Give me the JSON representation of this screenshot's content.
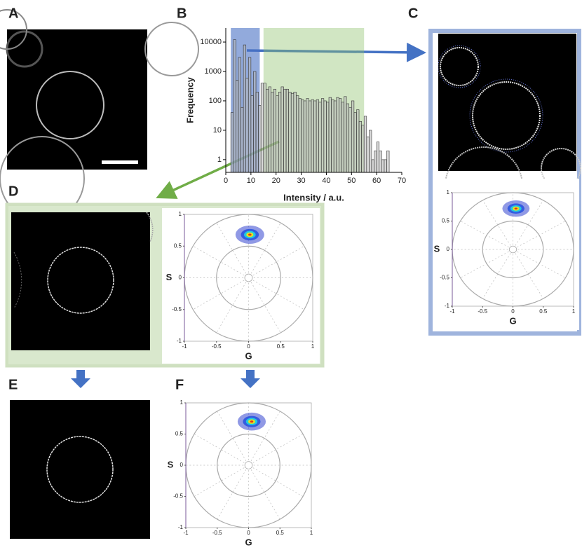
{
  "labels": [
    "A",
    "B",
    "C",
    "D",
    "E",
    "F"
  ],
  "histogram": {
    "type": "bar",
    "x_label": "Intensity / a.u.",
    "y_label": "Frequency",
    "log_y": true,
    "bins": [
      2,
      3,
      4,
      5,
      6,
      7,
      8,
      9,
      10,
      11,
      12,
      13,
      14,
      15,
      16,
      17,
      18,
      19,
      20,
      21,
      22,
      23,
      24,
      25,
      26,
      27,
      28,
      29,
      30,
      31,
      32,
      33,
      34,
      35,
      36,
      37,
      38,
      39,
      40,
      41,
      42,
      43,
      44,
      45,
      46,
      47,
      48,
      49,
      50,
      51,
      52,
      53,
      54,
      55,
      56,
      57,
      58,
      59,
      60,
      61,
      62,
      63,
      64,
      65
    ],
    "counts": [
      40,
      12000,
      500,
      3000,
      60,
      8000,
      600,
      3000,
      150,
      1000,
      200,
      70,
      400,
      400,
      250,
      300,
      200,
      250,
      150,
      200,
      300,
      250,
      250,
      200,
      180,
      200,
      150,
      120,
      110,
      100,
      120,
      100,
      110,
      100,
      110,
      90,
      120,
      100,
      90,
      130,
      110,
      100,
      130,
      120,
      90,
      140,
      80,
      60,
      100,
      40,
      50,
      20,
      15,
      30,
      6,
      10,
      1,
      2,
      4,
      2,
      1,
      1,
      2
    ],
    "color": "#b8b8b8",
    "xlim": [
      0,
      70
    ],
    "xticks": [
      0,
      10,
      20,
      30,
      40,
      50,
      60,
      70
    ],
    "ylim": [
      0.37,
      30000
    ],
    "yticks": [
      1,
      10,
      100,
      1000,
      10000
    ],
    "regions": [
      {
        "range": [
          2,
          13.5
        ],
        "color": "#4a72c4"
      },
      {
        "range": [
          15,
          55
        ],
        "color": "#8cc068"
      }
    ]
  },
  "phasors": [
    {
      "type": "scatter",
      "x_label": "G",
      "y_label": "S",
      "xlim": [
        -1,
        1
      ],
      "xticks": [
        -1,
        -0.5,
        0,
        0.5,
        1
      ],
      "ylim": [
        -1,
        1
      ],
      "yticks": [
        -1,
        -0.5,
        0,
        0.5,
        1
      ],
      "cluster": {
        "g": 0.05,
        "s": 0.72
      }
    },
    {
      "type": "scatter",
      "x_label": "G",
      "y_label": "S",
      "xlim": [
        -1,
        1
      ],
      "xticks": [
        -1,
        -0.5,
        0,
        0.5,
        1
      ],
      "ylim": [
        -1,
        1
      ],
      "yticks": [
        -1,
        -0.5,
        0,
        0.5,
        1
      ],
      "cluster": {
        "g": 0.02,
        "s": 0.68
      }
    },
    {
      "type": "scatter",
      "x_label": "G",
      "y_label": "S",
      "xlim": [
        -1,
        1
      ],
      "xticks": [
        -1,
        -0.5,
        0,
        0.5,
        1
      ],
      "ylim": [
        -1,
        1
      ],
      "yticks": [
        -1,
        -0.5,
        0,
        0.5,
        1
      ],
      "cluster": {
        "g": 0.05,
        "s": 0.7
      }
    }
  ]
}
